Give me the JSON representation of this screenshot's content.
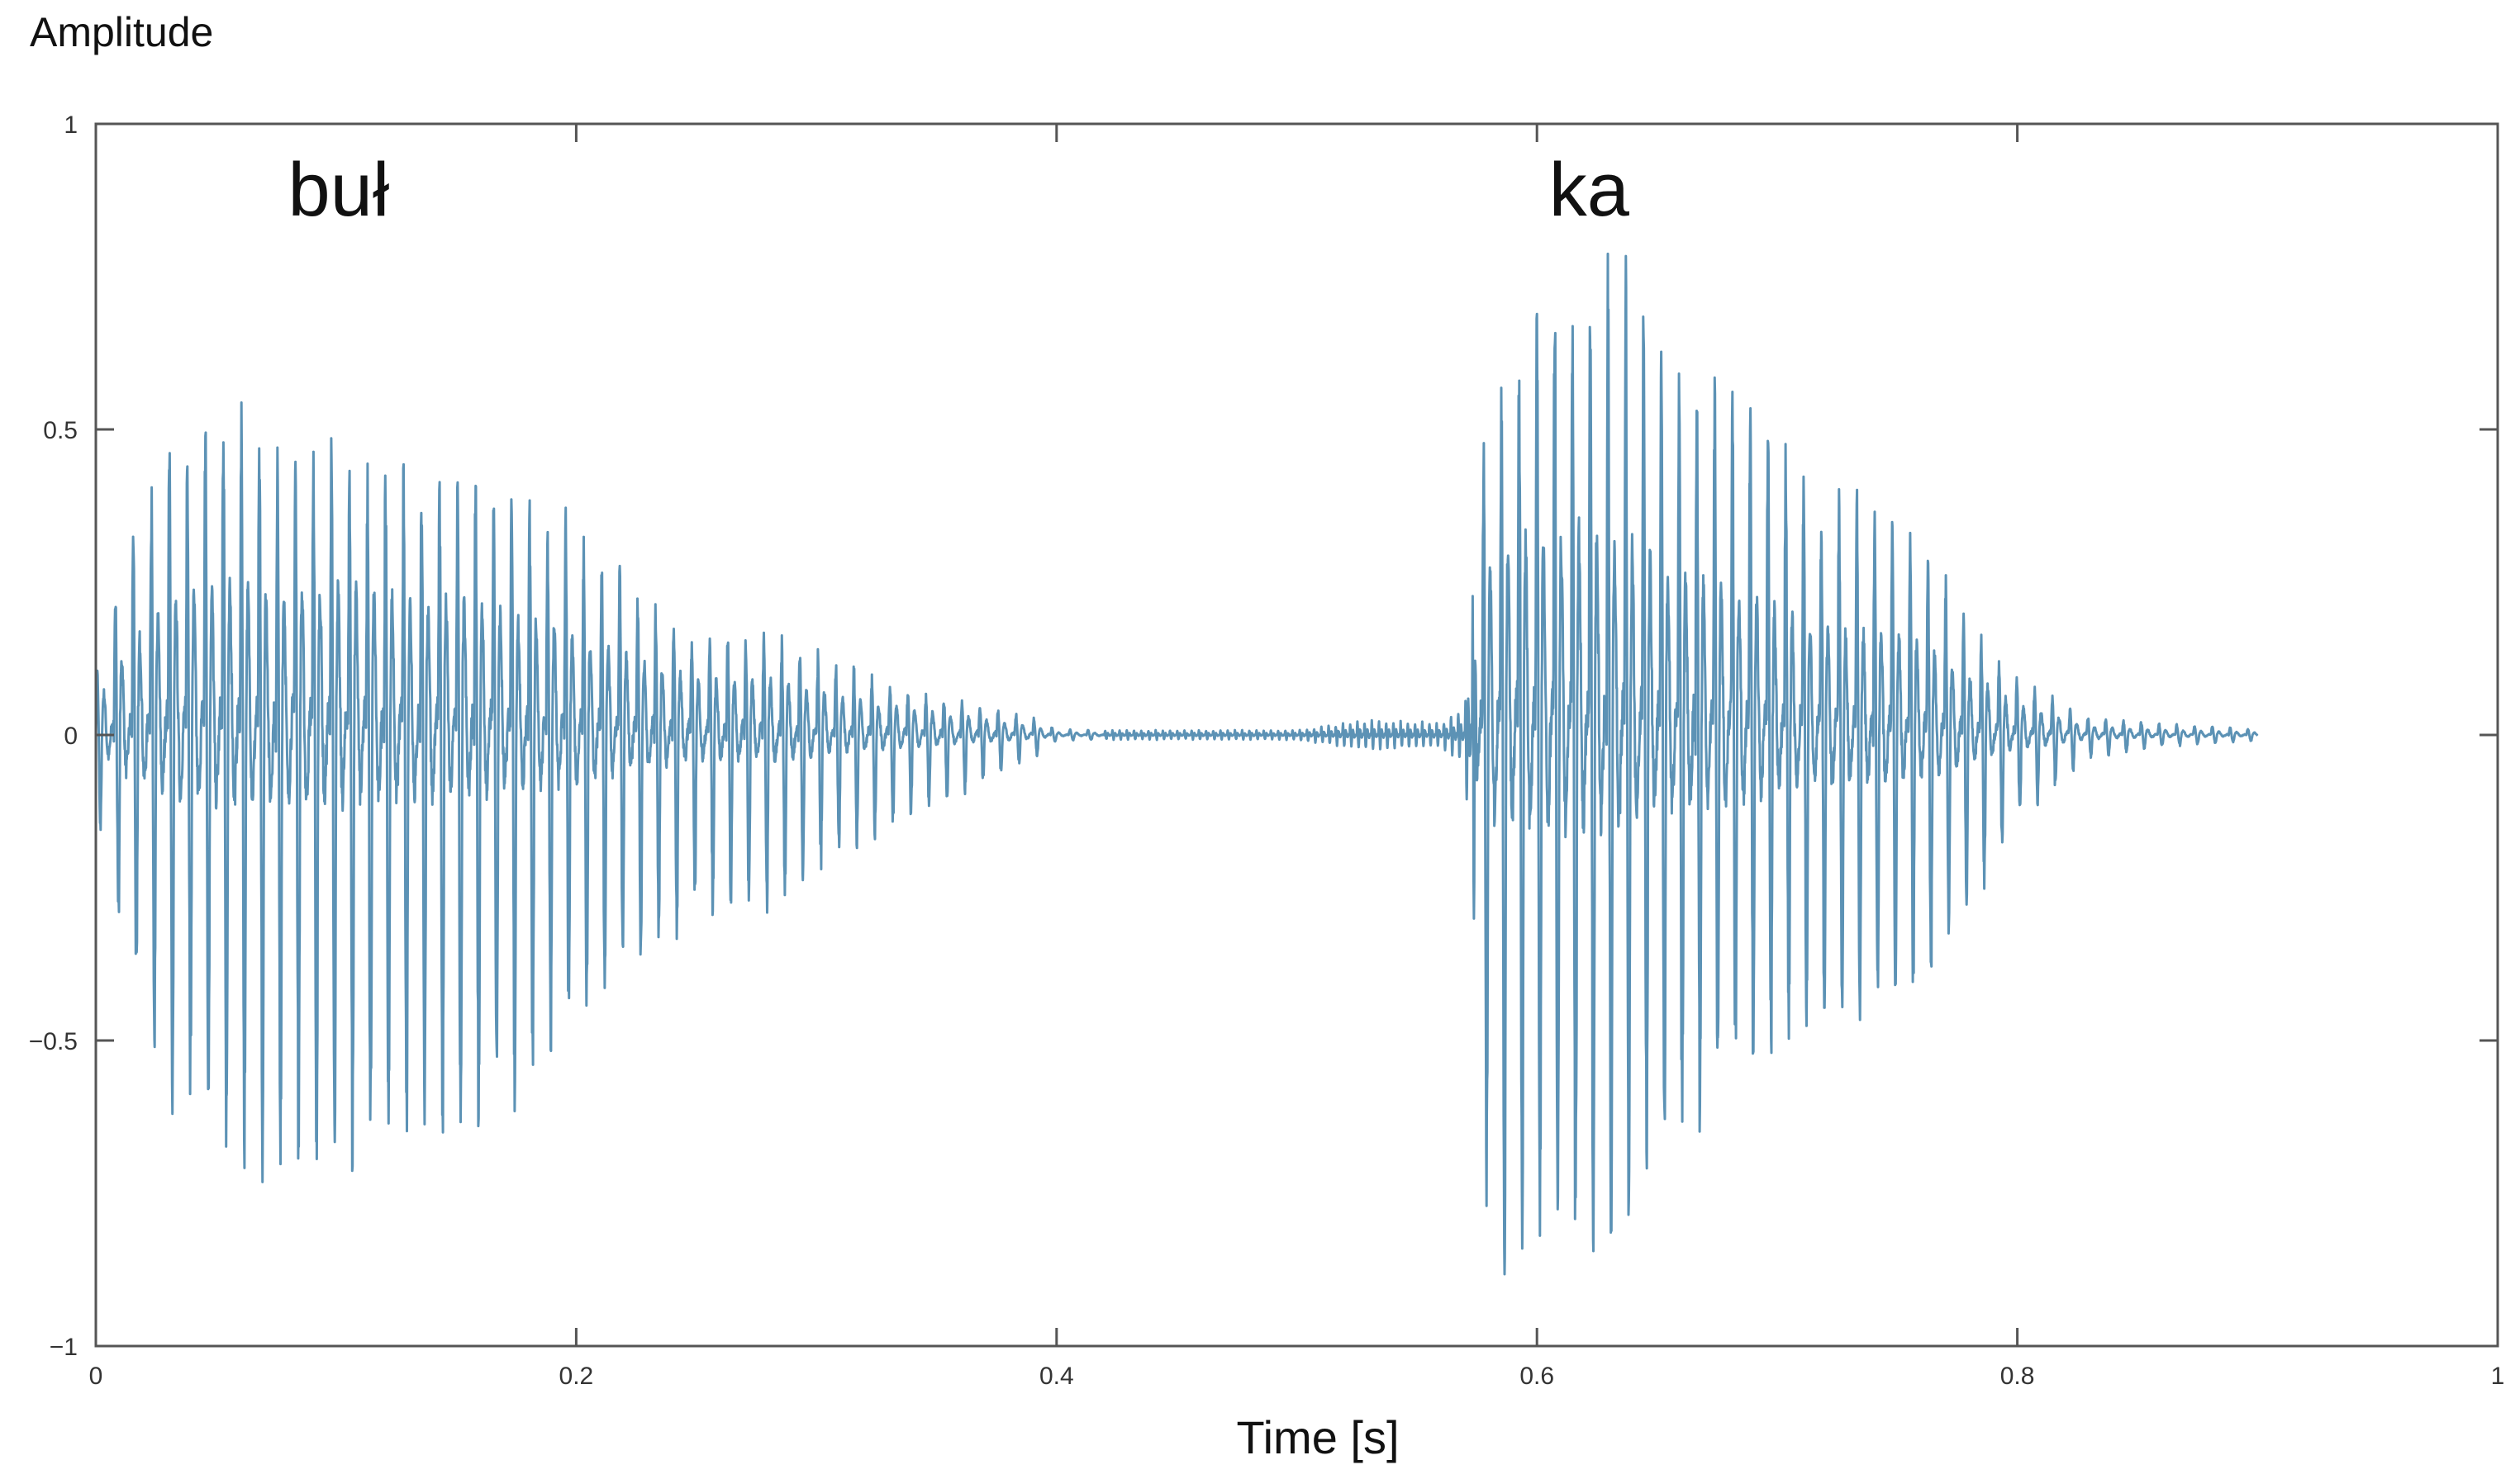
{
  "chart_data": {
    "type": "line",
    "title": "",
    "ylabel": "Amplitude",
    "xlabel": "Time [s]",
    "xlim": [
      0,
      1
    ],
    "ylim": [
      -1,
      1
    ],
    "grid": false,
    "series_color": "#4a86ad",
    "xticks": [
      {
        "value": 0,
        "label": "0"
      },
      {
        "value": 0.2,
        "label": "0.2"
      },
      {
        "value": 0.4,
        "label": "0.4"
      },
      {
        "value": 0.6,
        "label": "0.6"
      },
      {
        "value": 0.8,
        "label": "0.8"
      },
      {
        "value": 1,
        "label": "1"
      }
    ],
    "yticks": [
      {
        "value": 1,
        "label": "1"
      },
      {
        "value": 0.5,
        "label": "0.5"
      },
      {
        "value": 0,
        "label": "0"
      },
      {
        "value": -0.5,
        "label": "−0.5"
      },
      {
        "value": -1,
        "label": "−1"
      }
    ],
    "annotations": [
      {
        "text": "buł",
        "x": 0.08,
        "y": 0.85
      },
      {
        "text": "ka",
        "x": 0.605,
        "y": 0.85
      }
    ],
    "envelope": {
      "time": [
        0,
        0.01,
        0.03,
        0.05,
        0.07,
        0.1,
        0.13,
        0.16,
        0.19,
        0.22,
        0.25,
        0.28,
        0.31,
        0.34,
        0.37,
        0.39,
        0.4,
        0.42,
        0.5,
        0.52,
        0.53,
        0.56,
        0.57,
        0.58,
        0.59,
        0.6,
        0.62,
        0.64,
        0.66,
        0.68,
        0.7,
        0.72,
        0.74,
        0.76,
        0.78,
        0.8,
        0.83,
        0.86,
        0.9
      ],
      "upper": [
        0.1,
        0.3,
        0.5,
        0.55,
        0.5,
        0.48,
        0.43,
        0.42,
        0.38,
        0.27,
        0.17,
        0.17,
        0.12,
        0.07,
        0.05,
        0.03,
        0.01,
        0.008,
        0.008,
        0.02,
        0.025,
        0.02,
        0.05,
        0.6,
        0.65,
        0.76,
        0.8,
        0.8,
        0.62,
        0.62,
        0.5,
        0.4,
        0.4,
        0.35,
        0.2,
        0.1,
        0.03,
        0.02,
        0.01
      ],
      "lower": [
        -0.12,
        -0.35,
        -0.6,
        -0.7,
        -0.72,
        -0.77,
        -0.72,
        -0.68,
        -0.55,
        -0.4,
        -0.3,
        -0.3,
        -0.2,
        -0.14,
        -0.08,
        -0.04,
        -0.01,
        -0.008,
        -0.008,
        -0.02,
        -0.025,
        -0.02,
        -0.05,
        -0.9,
        -1.0,
        -0.88,
        -0.92,
        -0.8,
        -0.7,
        -0.6,
        -0.55,
        -0.5,
        -0.48,
        -0.45,
        -0.3,
        -0.15,
        -0.04,
        -0.02,
        -0.01
      ]
    }
  }
}
